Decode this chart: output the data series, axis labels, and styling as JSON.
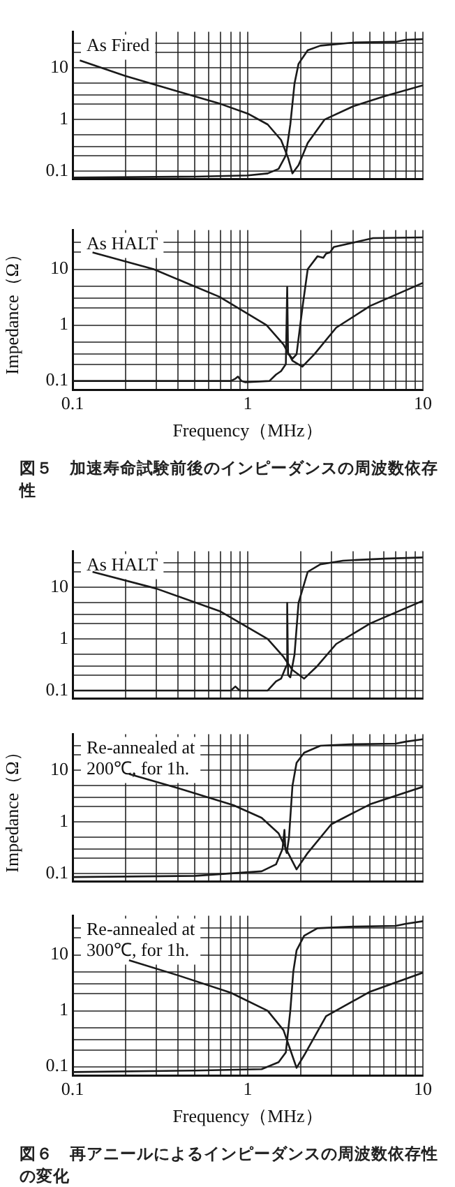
{
  "chart_data": [
    {
      "type": "line",
      "log": "xy",
      "grid": true,
      "marker": "none",
      "tick_labels": "y",
      "annotations": [
        "As Fired"
      ],
      "xlim": [
        0.1,
        10
      ],
      "ylim": [
        0.07,
        50
      ],
      "xticks": [
        0.1,
        {
          "value": 0.2,
          "label": null
        },
        {
          "value": 0.3,
          "label": null
        },
        {
          "value": 0.4,
          "label": null
        },
        {
          "value": 0.5,
          "label": null
        },
        {
          "value": 0.6,
          "label": null
        },
        {
          "value": 0.7,
          "label": null
        },
        {
          "value": 0.8,
          "label": null
        },
        {
          "value": 0.9,
          "label": null
        },
        1,
        {
          "value": 2,
          "label": null
        },
        {
          "value": 3,
          "label": null
        },
        {
          "value": 4,
          "label": null
        },
        {
          "value": 5,
          "label": null
        },
        {
          "value": 6,
          "label": null
        },
        {
          "value": 7,
          "label": null
        },
        {
          "value": 8,
          "label": null
        },
        {
          "value": 9,
          "label": null
        },
        10
      ],
      "yticks": [
        0.1,
        {
          "value": 0.2,
          "label": null
        },
        {
          "value": 0.3,
          "label": null
        },
        {
          "value": 0.5,
          "label": null
        },
        1,
        {
          "value": 2,
          "label": null
        },
        {
          "value": 3,
          "label": null
        },
        {
          "value": 5,
          "label": null
        },
        10,
        {
          "value": 20,
          "label": null
        },
        {
          "value": 30,
          "label": null
        }
      ],
      "series": [
        {
          "color": "#1a1a1a",
          "x": [
            0.11,
            0.2,
            0.4,
            0.7,
            1.0,
            1.3,
            1.55,
            1.7,
            1.8,
            1.95,
            2.2,
            2.75,
            4,
            6,
            10
          ],
          "values": [
            14,
            7,
            3.5,
            2.0,
            1.3,
            0.8,
            0.4,
            0.18,
            0.09,
            0.13,
            0.35,
            1.0,
            1.8,
            2.8,
            4.6
          ]
        },
        {
          "color": "#1a1a1a",
          "x": [
            0.1,
            0.5,
            1.0,
            1.3,
            1.5,
            1.65,
            1.75,
            1.85,
            1.95,
            2.2,
            2.6,
            4,
            7,
            8,
            10
          ],
          "values": [
            0.075,
            0.078,
            0.082,
            0.09,
            0.11,
            0.2,
            0.8,
            5,
            12,
            22,
            27,
            31,
            32,
            35,
            36
          ]
        }
      ]
    },
    {
      "type": "line",
      "log": "xy",
      "grid": true,
      "marker": "none",
      "ylabel": "Impedance（Ω）",
      "xlabel": "Frequency（MHz）",
      "annotations": [
        "As HALT",
        "図５　加速寿命試験前後のインピーダンスの周波数依存性"
      ],
      "xlim": [
        0.1,
        10
      ],
      "ylim": [
        0.07,
        50
      ],
      "xticks": [
        0.1,
        {
          "value": 0.2,
          "label": null
        },
        {
          "value": 0.3,
          "label": null
        },
        {
          "value": 0.4,
          "label": null
        },
        {
          "value": 0.5,
          "label": null
        },
        {
          "value": 0.6,
          "label": null
        },
        {
          "value": 0.7,
          "label": null
        },
        {
          "value": 0.8,
          "label": null
        },
        {
          "value": 0.9,
          "label": null
        },
        1,
        {
          "value": 2,
          "label": null
        },
        {
          "value": 3,
          "label": null
        },
        {
          "value": 4,
          "label": null
        },
        {
          "value": 5,
          "label": null
        },
        {
          "value": 6,
          "label": null
        },
        {
          "value": 7,
          "label": null
        },
        {
          "value": 8,
          "label": null
        },
        {
          "value": 9,
          "label": null
        },
        10
      ],
      "yticks": [
        0.1,
        {
          "value": 0.2,
          "label": null
        },
        {
          "value": 0.3,
          "label": null
        },
        {
          "value": 0.5,
          "label": null
        },
        1,
        {
          "value": 2,
          "label": null
        },
        {
          "value": 3,
          "label": null
        },
        {
          "value": 5,
          "label": null
        },
        10,
        {
          "value": 20,
          "label": null
        },
        {
          "value": 30,
          "label": null
        }
      ],
      "series": [
        {
          "color": "#1a1a1a",
          "x": [
            0.13,
            0.29,
            0.69,
            1.28,
            1.6,
            1.8,
            2.05,
            2.4,
            3.2,
            5,
            10
          ],
          "values": [
            20,
            10,
            3.2,
            1.0,
            0.45,
            0.23,
            0.18,
            0.3,
            0.9,
            2.2,
            5.7
          ]
        },
        {
          "color": "#1a1a1a",
          "x": [
            0.1,
            0.8,
            0.85,
            0.88,
            0.92,
            0.97,
            1.33,
            1.45,
            1.55,
            1.65,
            1.68,
            1.7,
            1.72,
            1.8,
            1.9,
            2.05,
            2.2,
            2.5,
            2.7,
            2.8,
            2.95,
            3.1,
            5.2,
            10
          ],
          "values": [
            0.1,
            0.1,
            0.11,
            0.12,
            0.1,
            0.095,
            0.1,
            0.13,
            0.15,
            0.2,
            4.8,
            0.3,
            0.3,
            0.25,
            0.3,
            2,
            10,
            17,
            16,
            19,
            20,
            25,
            36,
            37
          ]
        }
      ]
    },
    {
      "type": "line",
      "log": "xy",
      "grid": true,
      "marker": "none",
      "tick_labels": "y",
      "annotations": [
        "As HALT"
      ],
      "xlim": [
        0.1,
        10
      ],
      "ylim": [
        0.07,
        50
      ],
      "xticks": [
        0.1,
        {
          "value": 0.2,
          "label": null
        },
        {
          "value": 0.3,
          "label": null
        },
        {
          "value": 0.4,
          "label": null
        },
        {
          "value": 0.5,
          "label": null
        },
        {
          "value": 0.6,
          "label": null
        },
        {
          "value": 0.7,
          "label": null
        },
        {
          "value": 0.8,
          "label": null
        },
        {
          "value": 0.9,
          "label": null
        },
        1,
        {
          "value": 2,
          "label": null
        },
        {
          "value": 3,
          "label": null
        },
        {
          "value": 4,
          "label": null
        },
        {
          "value": 5,
          "label": null
        },
        {
          "value": 6,
          "label": null
        },
        {
          "value": 7,
          "label": null
        },
        {
          "value": 8,
          "label": null
        },
        {
          "value": 9,
          "label": null
        },
        10
      ],
      "yticks": [
        0.1,
        {
          "value": 0.2,
          "label": null
        },
        {
          "value": 0.3,
          "label": null
        },
        {
          "value": 0.5,
          "label": null
        },
        1,
        {
          "value": 2,
          "label": null
        },
        {
          "value": 3,
          "label": null
        },
        {
          "value": 5,
          "label": null
        },
        10,
        {
          "value": 20,
          "label": null
        },
        {
          "value": 30,
          "label": null
        }
      ],
      "series": [
        {
          "color": "#1a1a1a",
          "x": [
            0.13,
            0.3,
            0.7,
            1.3,
            1.6,
            1.8,
            2.1,
            2.5,
            3.2,
            5,
            10
          ],
          "values": [
            20,
            9.5,
            3.4,
            1.0,
            0.45,
            0.25,
            0.17,
            0.3,
            0.8,
            2,
            5.5
          ]
        },
        {
          "color": "#1a1a1a",
          "x": [
            0.1,
            0.8,
            0.85,
            0.9,
            1.3,
            1.45,
            1.55,
            1.66,
            1.68,
            1.7,
            1.75,
            1.85,
            1.95,
            2.2,
            2.6,
            3.5,
            6,
            10
          ],
          "values": [
            0.1,
            0.1,
            0.12,
            0.1,
            0.1,
            0.15,
            0.17,
            0.3,
            5,
            0.2,
            0.18,
            0.5,
            5,
            20,
            28,
            33,
            36,
            38
          ]
        }
      ]
    },
    {
      "type": "line",
      "log": "xy",
      "grid": true,
      "marker": "none",
      "tick_labels": "y",
      "ylabel": "Impedance（Ω）",
      "annotations": [
        "Re-annealed at 200℃, for 1h."
      ],
      "xlim": [
        0.1,
        10
      ],
      "ylim": [
        0.07,
        50
      ],
      "xticks": [
        0.1,
        {
          "value": 0.2,
          "label": null
        },
        {
          "value": 0.3,
          "label": null
        },
        {
          "value": 0.4,
          "label": null
        },
        {
          "value": 0.5,
          "label": null
        },
        {
          "value": 0.6,
          "label": null
        },
        {
          "value": 0.7,
          "label": null
        },
        {
          "value": 0.8,
          "label": null
        },
        {
          "value": 0.9,
          "label": null
        },
        1,
        {
          "value": 2,
          "label": null
        },
        {
          "value": 3,
          "label": null
        },
        {
          "value": 4,
          "label": null
        },
        {
          "value": 5,
          "label": null
        },
        {
          "value": 6,
          "label": null
        },
        {
          "value": 7,
          "label": null
        },
        {
          "value": 8,
          "label": null
        },
        {
          "value": 9,
          "label": null
        },
        10
      ],
      "yticks": [
        0.1,
        {
          "value": 0.2,
          "label": null
        },
        {
          "value": 0.3,
          "label": null
        },
        {
          "value": 0.5,
          "label": null
        },
        1,
        {
          "value": 2,
          "label": null
        },
        {
          "value": 3,
          "label": null
        },
        {
          "value": 5,
          "label": null
        },
        10,
        {
          "value": 20,
          "label": null
        },
        {
          "value": 30,
          "label": null
        }
      ],
      "series": [
        {
          "color": "#1a1a1a",
          "x": [
            0.21,
            0.4,
            0.83,
            1.2,
            1.5,
            1.7,
            1.9,
            2.2,
            3,
            5,
            10
          ],
          "values": [
            8.5,
            4.5,
            2.1,
            1.2,
            0.6,
            0.25,
            0.12,
            0.25,
            0.9,
            2.2,
            4.8
          ]
        },
        {
          "color": "#1a1a1a",
          "x": [
            0.1,
            0.5,
            1.2,
            1.45,
            1.58,
            1.62,
            1.64,
            1.67,
            1.72,
            1.8,
            1.9,
            2.1,
            2.6,
            4,
            7,
            8,
            10
          ],
          "values": [
            0.085,
            0.09,
            0.11,
            0.15,
            0.3,
            0.7,
            0.3,
            0.25,
            0.5,
            5,
            14,
            22,
            30,
            32,
            33,
            36,
            40
          ]
        }
      ]
    },
    {
      "type": "line",
      "log": "xy",
      "grid": true,
      "marker": "none",
      "xlabel": "Frequency（MHz）",
      "annotations": [
        "Re-annealed at 300℃, for 1h.",
        "図６　再アニールによるインピーダンスの周波数依存性の変化"
      ],
      "xlim": [
        0.1,
        10
      ],
      "ylim": [
        0.07,
        50
      ],
      "xticks": [
        0.1,
        {
          "value": 0.2,
          "label": null
        },
        {
          "value": 0.3,
          "label": null
        },
        {
          "value": 0.4,
          "label": null
        },
        {
          "value": 0.5,
          "label": null
        },
        {
          "value": 0.6,
          "label": null
        },
        {
          "value": 0.7,
          "label": null
        },
        {
          "value": 0.8,
          "label": null
        },
        {
          "value": 0.9,
          "label": null
        },
        1,
        {
          "value": 2,
          "label": null
        },
        {
          "value": 3,
          "label": null
        },
        {
          "value": 4,
          "label": null
        },
        {
          "value": 5,
          "label": null
        },
        {
          "value": 6,
          "label": null
        },
        {
          "value": 7,
          "label": null
        },
        {
          "value": 8,
          "label": null
        },
        {
          "value": 9,
          "label": null
        },
        10
      ],
      "yticks": [
        0.1,
        {
          "value": 0.2,
          "label": null
        },
        {
          "value": 0.3,
          "label": null
        },
        {
          "value": 0.5,
          "label": null
        },
        1,
        {
          "value": 2,
          "label": null
        },
        {
          "value": 3,
          "label": null
        },
        {
          "value": 5,
          "label": null
        },
        10,
        {
          "value": 20,
          "label": null
        },
        {
          "value": 30,
          "label": null
        }
      ],
      "series": [
        {
          "color": "#1a1a1a",
          "x": [
            0.21,
            0.4,
            0.8,
            1.3,
            1.6,
            1.75,
            1.9,
            2.1,
            2.8,
            5,
            10
          ],
          "values": [
            8,
            4.3,
            2.1,
            1.0,
            0.45,
            0.2,
            0.095,
            0.16,
            0.8,
            2.2,
            4.8
          ]
        },
        {
          "color": "#1a1a1a",
          "x": [
            0.1,
            0.5,
            1.2,
            1.5,
            1.65,
            1.75,
            1.82,
            1.9,
            2.1,
            2.5,
            4,
            7,
            8,
            10
          ],
          "values": [
            0.08,
            0.085,
            0.09,
            0.12,
            0.18,
            1,
            5,
            12,
            22,
            30,
            32,
            33,
            36,
            40
          ]
        }
      ]
    }
  ]
}
